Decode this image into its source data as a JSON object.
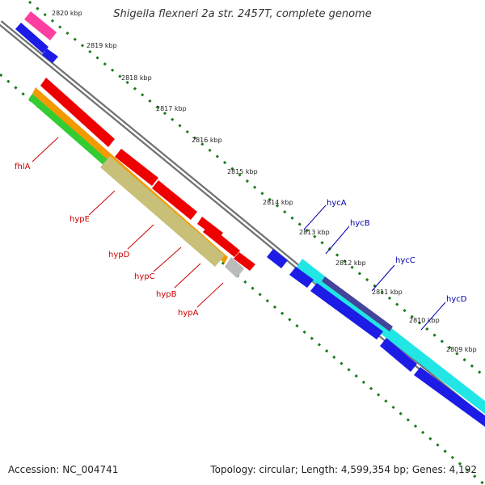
{
  "title": "Shigella flexneri 2a str. 2457T, complete genome",
  "footer": {
    "accession": "Accession: NC_004741",
    "summary": "Topology: circular; Length: 4,599,354 bp; Genes: 4,192"
  },
  "colors": {
    "backbone": "#707070",
    "ruler": "#1a7a1a",
    "red_label": "#cc0000",
    "blue_label": "#0000aa"
  },
  "ticks": [
    {
      "label": "2820 kbp"
    },
    {
      "label": "2819 kbp"
    },
    {
      "label": "2818 kbp"
    },
    {
      "label": "2817 kbp"
    },
    {
      "label": "2816 kbp"
    },
    {
      "label": "2815 kbp"
    },
    {
      "label": "2814 kbp"
    },
    {
      "label": "2813 kbp"
    },
    {
      "label": "2812 kbp"
    },
    {
      "label": "2811 kbp"
    },
    {
      "label": "2810 kbp"
    },
    {
      "label": "2809 kbp"
    }
  ],
  "gene_labels_left": [
    {
      "label": "fhlA"
    },
    {
      "label": "hypE"
    },
    {
      "label": "hypD"
    },
    {
      "label": "hypC"
    },
    {
      "label": "hypB"
    },
    {
      "label": "hypA"
    }
  ],
  "gene_labels_right": [
    {
      "label": "hycA"
    },
    {
      "label": "hycB"
    },
    {
      "label": "hycC"
    },
    {
      "label": "hycD"
    }
  ]
}
